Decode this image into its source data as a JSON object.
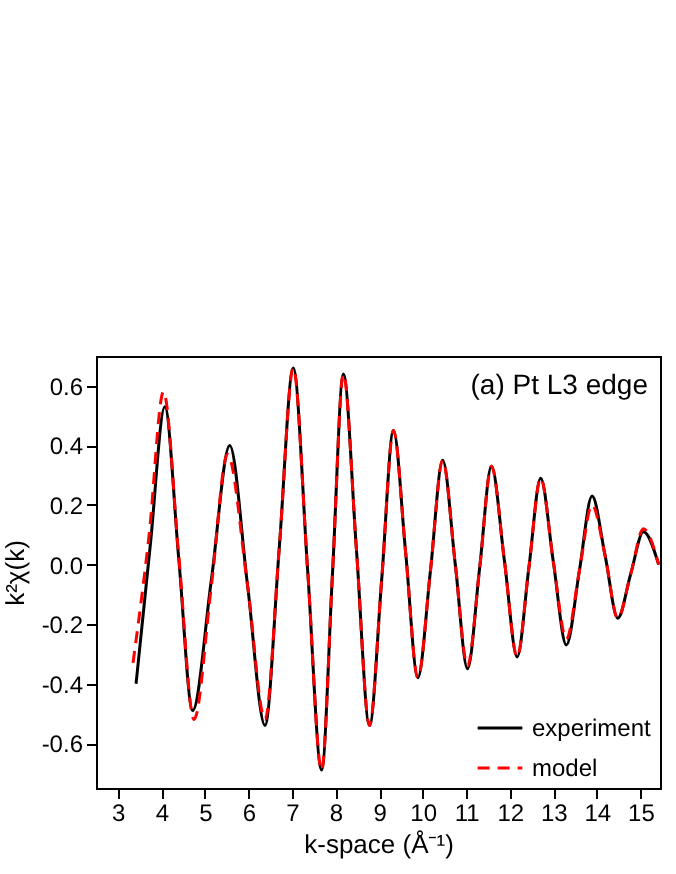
{
  "chart_data": {
    "type": "line",
    "xlabel": "k-space (Å⁻¹)",
    "ylabel": "k²χ(k)",
    "annotations": [
      "(a)  Pt L3 edge"
    ],
    "xlim": [
      2.5,
      15.45
    ],
    "xticks": [
      3,
      4,
      5,
      6,
      7,
      8,
      9,
      10,
      11,
      12,
      13,
      14,
      15
    ],
    "ylim": [
      -0.75,
      0.7
    ],
    "yticks": [
      -0.6,
      -0.4,
      -0.2,
      {
        "value": 0,
        "label": "0.0"
      },
      0.2,
      0.4,
      0.6
    ],
    "grid": false,
    "legend": "bottom right",
    "marker": "none",
    "series": [
      {
        "name": "experiment",
        "color": "#000000",
        "line_style": "solid",
        "x": [
          3.42,
          3.75,
          4.08,
          4.4,
          4.72,
          5.15,
          5.57,
          5.98,
          6.38,
          6.71,
          7.03,
          7.36,
          7.68,
          7.93,
          8.18,
          8.48,
          8.78,
          9.06,
          9.33,
          9.61,
          9.89,
          10.18,
          10.46,
          10.75,
          11.03,
          11.31,
          11.58,
          11.88,
          12.17,
          12.44,
          12.71,
          13.0,
          13.3,
          13.6,
          13.89,
          14.19,
          14.48,
          14.78,
          15.07,
          15.42
        ],
        "values": [
          -0.4,
          0.07,
          0.53,
          0.02,
          -0.49,
          -0.05,
          0.4,
          -0.07,
          -0.54,
          0.06,
          0.66,
          -0.02,
          -0.69,
          -0.03,
          0.64,
          0.05,
          -0.54,
          -0.05,
          0.45,
          0.04,
          -0.38,
          -0.02,
          0.35,
          0.0,
          -0.35,
          -0.01,
          0.33,
          0.01,
          -0.31,
          -0.01,
          0.29,
          0.01,
          -0.27,
          -0.02,
          0.23,
          0.03,
          -0.18,
          -0.03,
          0.11,
          0.0
        ]
      },
      {
        "name": "model",
        "color": "#ff0000",
        "line_style": "dashed",
        "x": [
          3.35,
          3.72,
          4.05,
          4.4,
          4.75,
          5.15,
          5.52,
          5.98,
          6.38,
          6.71,
          7.03,
          7.36,
          7.68,
          7.93,
          8.18,
          8.48,
          8.78,
          9.06,
          9.33,
          9.61,
          9.89,
          10.18,
          10.46,
          10.75,
          11.03,
          11.31,
          11.58,
          11.88,
          12.17,
          12.44,
          12.71,
          13.0,
          13.3,
          13.6,
          13.89,
          14.19,
          14.48,
          14.78,
          15.07,
          15.42
        ],
        "values": [
          -0.33,
          0.1,
          0.58,
          0.03,
          -0.52,
          -0.07,
          0.37,
          -0.07,
          -0.52,
          0.06,
          0.66,
          -0.02,
          -0.69,
          -0.03,
          0.64,
          0.05,
          -0.54,
          -0.05,
          0.45,
          0.04,
          -0.38,
          -0.02,
          0.35,
          0.0,
          -0.34,
          -0.01,
          0.33,
          0.01,
          -0.31,
          -0.01,
          0.29,
          0.01,
          -0.25,
          -0.02,
          0.2,
          0.03,
          -0.18,
          -0.03,
          0.12,
          0.0
        ]
      }
    ]
  }
}
